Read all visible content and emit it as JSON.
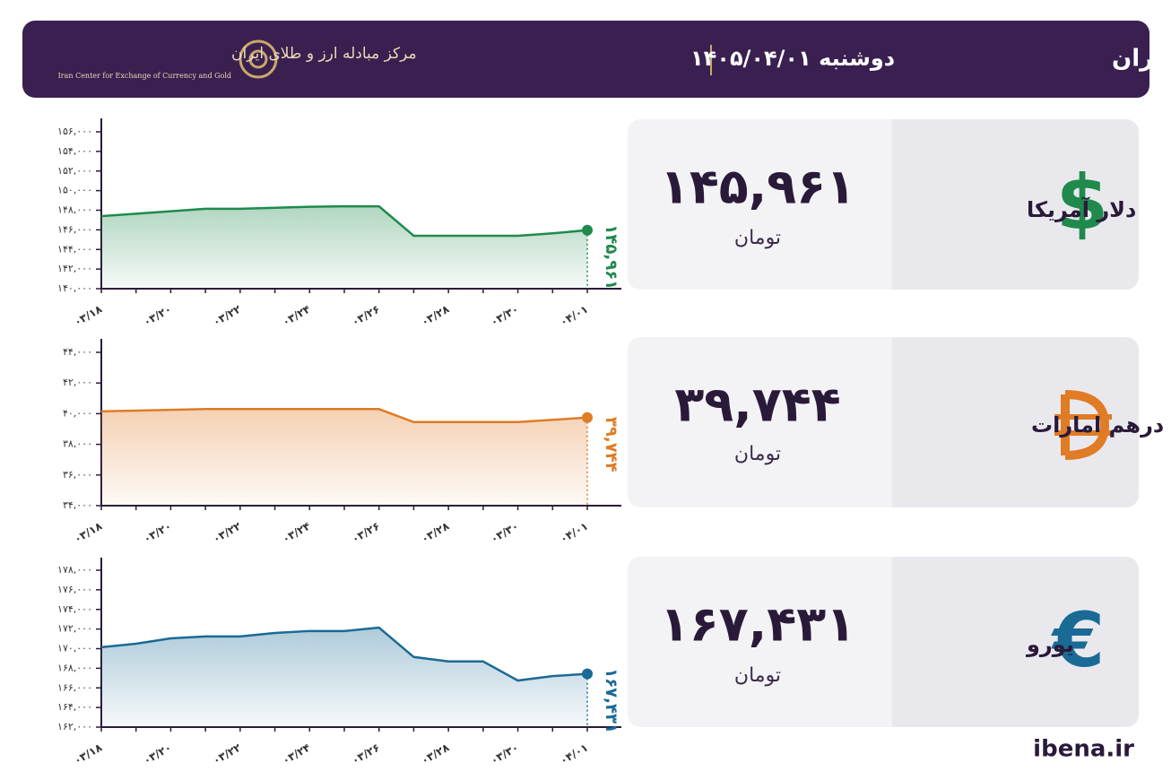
{
  "header": {
    "title": "نرخ قیمت ارز مرکز مبادله ایران",
    "date": "دوشنبه  ۱۴۰۵/۰۴/۰۱",
    "logo_name": "مرکز مبادله ارز و طلای ایران",
    "logo_english": "Iran Center for Exchange of Currency and Gold"
  },
  "cards": [
    {
      "symbol": "$",
      "name": "دلار آمریکا",
      "price": "۱۴۵,۹۶۱",
      "unit": "تومان"
    },
    {
      "name": "درهم امارات",
      "price": "۳۹,۷۴۴",
      "unit": "تومان"
    },
    {
      "symbol": "€",
      "name": "یورو",
      "price": "۱۶۷,۴۳۱",
      "unit": "تومان"
    }
  ],
  "footer": "ibena.ir",
  "chart_data": [
    {
      "type": "line",
      "color": "#1f8a4c",
      "categories": [
        "۰۳/۱۸",
        null,
        "۰۳/۲۰",
        null,
        "۰۳/۲۲",
        null,
        "۰۳/۲۴",
        null,
        "۰۳/۲۶",
        null,
        "۰۳/۲۸",
        null,
        "۰۳/۳۰",
        null,
        "۰۴/۰۱"
      ],
      "values": [
        147400,
        147650,
        147900,
        148150,
        148150,
        148250,
        148350,
        148400,
        148400,
        145400,
        145400,
        145400,
        145400,
        145650,
        145961
      ],
      "value_labels": [
        null,
        null,
        null,
        null,
        null,
        null,
        null,
        null,
        null,
        null,
        null,
        null,
        null,
        null,
        "۱۴۵,۹۶۱"
      ],
      "ylim": [
        140000,
        156000
      ],
      "yticks": [
        {
          "value": 140000,
          "label": "۱۴۰,۰۰۰"
        },
        {
          "value": 142000,
          "label": "۱۴۲,۰۰۰"
        },
        {
          "value": 144000,
          "label": "۱۴۴,۰۰۰"
        },
        {
          "value": 146000,
          "label": "۱۴۶,۰۰۰"
        },
        {
          "value": 148000,
          "label": "۱۴۸,۰۰۰"
        },
        {
          "value": 150000,
          "label": "۱۵۰,۰۰۰"
        },
        {
          "value": 152000,
          "label": "۱۵۲,۰۰۰"
        },
        {
          "value": 154000,
          "label": "۱۵۴,۰۰۰"
        },
        {
          "value": 156000,
          "label": "۱۵۶,۰۰۰"
        }
      ]
    },
    {
      "type": "line",
      "color": "#e07b26",
      "categories": [
        "۰۳/۱۸",
        null,
        "۰۳/۲۰",
        null,
        "۰۳/۲۲",
        null,
        "۰۳/۲۴",
        null,
        "۰۳/۲۶",
        null,
        "۰۳/۲۸",
        null,
        "۰۳/۳۰",
        null,
        "۰۴/۰۱"
      ],
      "values": [
        40150,
        40200,
        40250,
        40300,
        40300,
        40300,
        40300,
        40300,
        40300,
        39450,
        39450,
        39450,
        39450,
        39600,
        39744
      ],
      "value_labels": [
        null,
        null,
        null,
        null,
        null,
        null,
        null,
        null,
        null,
        null,
        null,
        null,
        null,
        null,
        "۳۹,۷۴۴"
      ],
      "ylim": [
        34000,
        44000
      ],
      "yticks": [
        {
          "value": 34000,
          "label": "۳۴,۰۰۰"
        },
        {
          "value": 36000,
          "label": "۳۶,۰۰۰"
        },
        {
          "value": 38000,
          "label": "۳۸,۰۰۰"
        },
        {
          "value": 40000,
          "label": "۴۰,۰۰۰"
        },
        {
          "value": 42000,
          "label": "۴۲,۰۰۰"
        },
        {
          "value": 44000,
          "label": "۴۴,۰۰۰"
        }
      ]
    },
    {
      "type": "line",
      "color": "#1a6a96",
      "categories": [
        "۰۳/۱۸",
        null,
        "۰۳/۲۰",
        null,
        "۰۳/۲۲",
        null,
        "۰۳/۲۴",
        null,
        "۰۳/۲۶",
        null,
        "۰۳/۲۸",
        null,
        "۰۳/۳۰",
        null,
        "۰۴/۰۱"
      ],
      "values": [
        170150,
        170500,
        171050,
        171250,
        171250,
        171600,
        171800,
        171800,
        172150,
        169150,
        168700,
        168700,
        166750,
        167200,
        167431
      ],
      "value_labels": [
        null,
        null,
        null,
        null,
        null,
        null,
        null,
        null,
        null,
        null,
        null,
        null,
        null,
        null,
        "۱۶۷,۴۳۱"
      ],
      "ylim": [
        162000,
        178000
      ],
      "yticks": [
        {
          "value": 162000,
          "label": "۱۶۲,۰۰۰"
        },
        {
          "value": 164000,
          "label": "۱۶۴,۰۰۰"
        },
        {
          "value": 166000,
          "label": "۱۶۶,۰۰۰"
        },
        {
          "value": 168000,
          "label": "۱۶۸,۰۰۰"
        },
        {
          "value": 170000,
          "label": "۱۷۰,۰۰۰"
        },
        {
          "value": 172000,
          "label": "۱۷۲,۰۰۰"
        },
        {
          "value": 174000,
          "label": "۱۷۴,۰۰۰"
        },
        {
          "value": 176000,
          "label": "۱۷۶,۰۰۰"
        },
        {
          "value": 178000,
          "label": "۱۷۸,۰۰۰"
        }
      ]
    }
  ]
}
